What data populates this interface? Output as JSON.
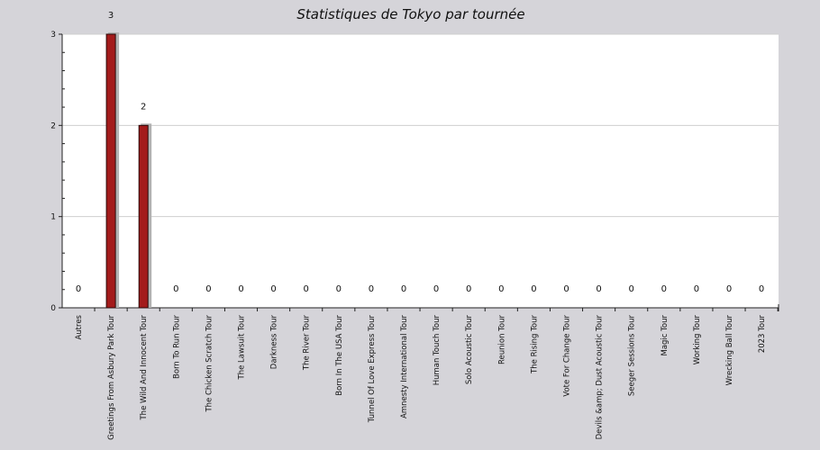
{
  "chart_data": {
    "type": "bar",
    "title": "Statistiques de Tokyo par tournée",
    "xlabel": "",
    "ylabel": "",
    "ylim": [
      0,
      3
    ],
    "yticks": [
      0,
      1,
      2,
      3
    ],
    "grid": true,
    "categories": [
      "Autres",
      "Greetings From Asbury Park Tour",
      "The Wild And Innocent Tour",
      "Born To Run Tour",
      "The Chicken Scratch Tour",
      "The Lawsuit Tour",
      "Darkness Tour",
      "The River Tour",
      "Born In The USA Tour",
      "Tunnel Of Love Express Tour",
      "Amnesty International Tour",
      "Human Touch Tour",
      "Solo Acoustic Tour",
      "Reunion Tour",
      "The Rising Tour",
      "Vote For Change Tour",
      "Devils &amp; Dust Acoustic Tour",
      "Seeger Sessions Tour",
      "Magic Tour",
      "Working Tour",
      "Wrecking Ball Tour",
      "2023 Tour"
    ],
    "values": [
      0,
      3,
      2,
      0,
      0,
      0,
      0,
      0,
      0,
      0,
      0,
      0,
      0,
      0,
      0,
      0,
      0,
      0,
      0,
      0,
      0,
      0
    ],
    "colors": {
      "bar": "#a31b1b",
      "bar_shadow": "#b3b3b3",
      "plot_background": "#ffffff",
      "page_background": "#d5d4d9",
      "grid": "#cfcfcf"
    }
  }
}
